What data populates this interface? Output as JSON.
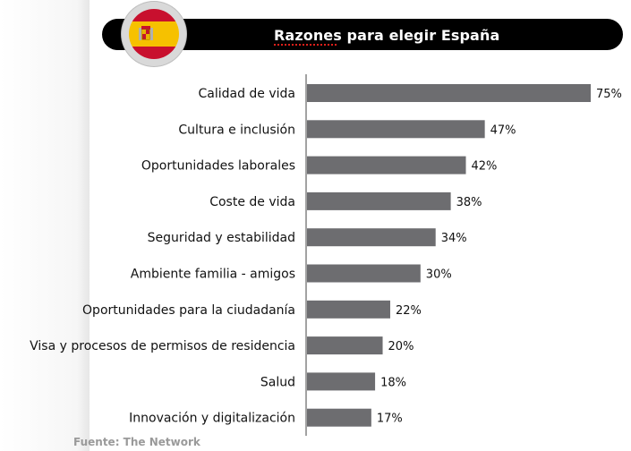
{
  "chart_data": {
    "type": "bar",
    "orientation": "horizontal",
    "title": "Razones para elegir España",
    "categories": [
      "Calidad de vida",
      "Cultura e inclusión",
      "Oportunidades laborales",
      "Coste de vida",
      "Seguridad y estabilidad",
      "Ambiente familia - amigos",
      "Oportunidades para la ciudadanía",
      "Visa y procesos de permisos de residencia",
      "Salud",
      "Innovación y digitalización"
    ],
    "values": [
      75,
      47,
      42,
      38,
      34,
      30,
      22,
      20,
      18,
      17
    ],
    "value_labels": [
      "75%",
      "47%",
      "42%",
      "38%",
      "34%",
      "30%",
      "22%",
      "20%",
      "18%",
      "17%"
    ],
    "unit": "%",
    "xlim": [
      0,
      100
    ],
    "grid": false,
    "legend": "none",
    "bar_color": "#6d6d70"
  },
  "header": {
    "flag": "spain-flag-icon"
  },
  "footer": {
    "source": "Fuente: The Network"
  },
  "colors": {
    "title_bar": "#000000",
    "title_text": "#ffffff",
    "bar": "#6d6d70",
    "source_text": "#9a9a9a"
  }
}
